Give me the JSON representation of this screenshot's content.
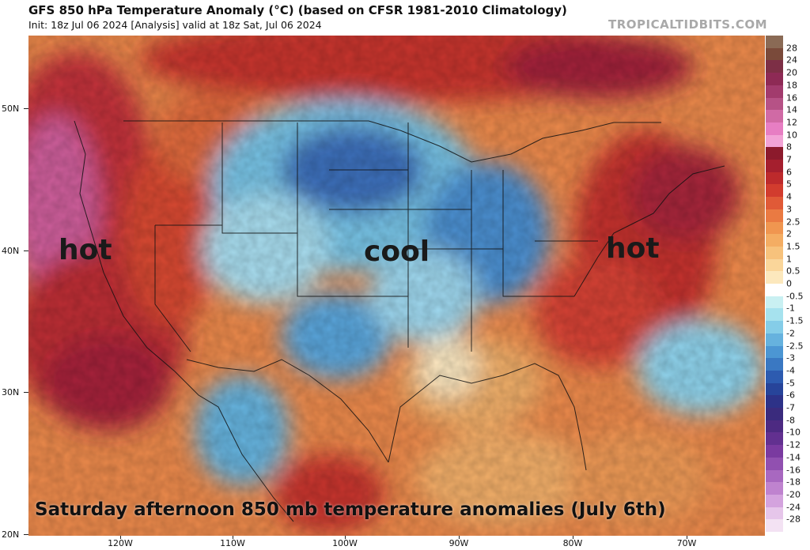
{
  "header": {
    "title": "GFS 850 hPa Temperature Anomaly (°C) (based on CFSR 1981-2010 Climatology)",
    "subtitle": "Init: 18z Jul 06 2024   [Analysis]   valid at 18z Sat, Jul 06 2024",
    "credit": "TROPICALTIDBITS.COM"
  },
  "axes": {
    "lat_labels": [
      "50N",
      "40N",
      "30N",
      "20N"
    ],
    "lon_labels": [
      "120W",
      "110W",
      "100W",
      "90W",
      "80W",
      "70W"
    ]
  },
  "colorbar": {
    "labels": [
      "28",
      "24",
      "20",
      "18",
      "16",
      "14",
      "12",
      "10",
      "8",
      "7",
      "6",
      "5",
      "4",
      "3",
      "2.5",
      "2",
      "1.5",
      "1",
      "0.5",
      "0",
      "-0.5",
      "-1",
      "-1.5",
      "-2",
      "-2.5",
      "-3",
      "-4",
      "-5",
      "-6",
      "-7",
      "-8",
      "-10",
      "-12",
      "-14",
      "-16",
      "-18",
      "-20",
      "-24",
      "-28"
    ],
    "colors": [
      "#7a4a3a",
      "#7d2f46",
      "#8e2a55",
      "#a23b6d",
      "#b65286",
      "#d06aa5",
      "#e77ec3",
      "#f2a3d6",
      "#8c1a2c",
      "#a51f2e",
      "#bd2a2c",
      "#d23c2e",
      "#e05a37",
      "#ea7a42",
      "#f09650",
      "#f4ad63",
      "#f7c27c",
      "#fad69a",
      "#fce8bd",
      "#ffffff",
      "#c9f0f2",
      "#a6e2ee",
      "#85cde8",
      "#66b2de",
      "#4c96d3",
      "#3a78c2",
      "#2d5bb0",
      "#27449a",
      "#2d3288",
      "#3a2b7d",
      "#4d2a82",
      "#623090",
      "#7a3aa0",
      "#9150b0",
      "#a868c0",
      "#bf83cf",
      "#d4a3de",
      "#e6c6ea",
      "#f3e2f3"
    ]
  },
  "annotations": {
    "hot_west": "hot",
    "cool_center": "cool",
    "hot_east": "hot",
    "caption": "Saturday afternoon 850 mb temperature anomalies (July 6th)"
  }
}
